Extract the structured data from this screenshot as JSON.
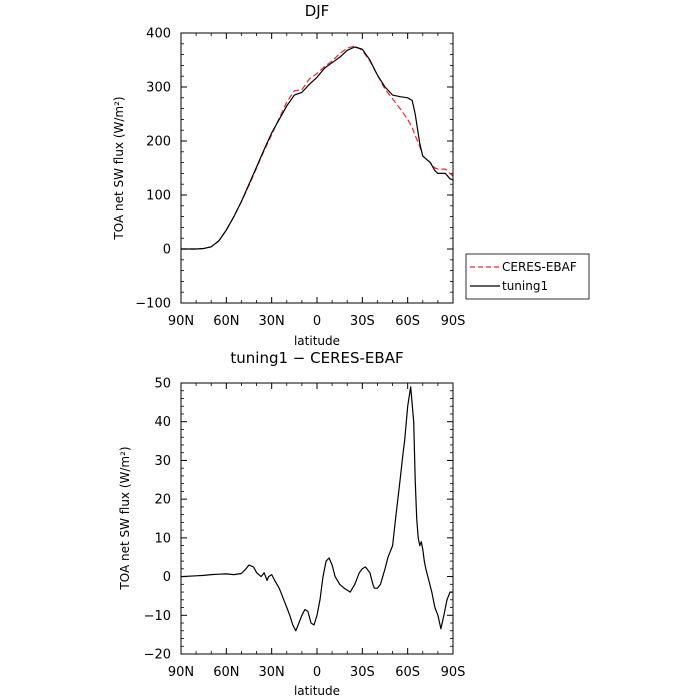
{
  "chart_data": [
    {
      "type": "line",
      "title": "DJF",
      "xlabel": "latitude",
      "ylabel": "TOA net SW flux (W/m²)",
      "xlim": [
        90,
        -90
      ],
      "ylim": [
        -100,
        400
      ],
      "xticks": [
        {
          "value": 90,
          "label": "90N"
        },
        {
          "value": 60,
          "label": "60N"
        },
        {
          "value": 30,
          "label": "30N"
        },
        {
          "value": 0,
          "label": "0"
        },
        {
          "value": -30,
          "label": "30S"
        },
        {
          "value": -60,
          "label": "60S"
        },
        {
          "value": -90,
          "label": "90S"
        }
      ],
      "yticks": [
        -100,
        0,
        100,
        200,
        300,
        400
      ],
      "grid": false,
      "legend": "right",
      "series": [
        {
          "name": "CERES-EBAF",
          "color": "#e8282c",
          "dash": "dashed",
          "x": [
            90,
            80,
            75,
            70,
            65,
            60,
            55,
            50,
            45,
            40,
            35,
            30,
            25,
            20,
            15,
            10,
            5,
            0,
            -5,
            -10,
            -15,
            -20,
            -25,
            -30,
            -35,
            -40,
            -45,
            -50,
            -55,
            -60,
            -63,
            -65,
            -68,
            -70,
            -75,
            -78,
            -80,
            -85,
            -88,
            -90
          ],
          "y": [
            0,
            0,
            1,
            4,
            15,
            35,
            60,
            88,
            118,
            150,
            182,
            212,
            242,
            272,
            293,
            295,
            315,
            325,
            338,
            348,
            362,
            372,
            376,
            368,
            348,
            322,
            296,
            278,
            260,
            240,
            225,
            210,
            190,
            172,
            160,
            150,
            148,
            148,
            140,
            135
          ]
        },
        {
          "name": "tuning1",
          "color": "#000000",
          "dash": "solid",
          "x": [
            90,
            80,
            75,
            70,
            65,
            60,
            55,
            50,
            45,
            40,
            35,
            30,
            25,
            20,
            15,
            10,
            5,
            0,
            -5,
            -10,
            -15,
            -20,
            -25,
            -30,
            -35,
            -40,
            -45,
            -50,
            -55,
            -60,
            -63,
            -65,
            -68,
            -70,
            -75,
            -78,
            -80,
            -85,
            -88,
            -90
          ],
          "y": [
            0,
            0,
            1,
            4,
            15,
            35,
            60,
            88,
            120,
            152,
            184,
            215,
            240,
            265,
            285,
            290,
            305,
            318,
            335,
            345,
            355,
            368,
            374,
            370,
            350,
            322,
            300,
            285,
            282,
            280,
            275,
            250,
            195,
            172,
            160,
            145,
            140,
            140,
            130,
            128
          ]
        }
      ]
    },
    {
      "type": "line",
      "title": "tuning1 − CERES-EBAF",
      "xlabel": "latitude",
      "ylabel": "TOA net SW flux (W/m²)",
      "xlim": [
        90,
        -90
      ],
      "ylim": [
        -20,
        50
      ],
      "xticks": [
        {
          "value": 90,
          "label": "90N"
        },
        {
          "value": 60,
          "label": "60N"
        },
        {
          "value": 30,
          "label": "30N"
        },
        {
          "value": 0,
          "label": "0"
        },
        {
          "value": -30,
          "label": "30S"
        },
        {
          "value": -60,
          "label": "60S"
        },
        {
          "value": -90,
          "label": "90S"
        }
      ],
      "yticks": [
        -20,
        -10,
        0,
        10,
        20,
        30,
        40,
        50
      ],
      "grid": false,
      "series": [
        {
          "color": "#000000",
          "dash": "solid",
          "x": [
            90,
            80,
            75,
            70,
            65,
            60,
            55,
            50,
            47,
            45,
            42,
            40,
            37,
            35,
            33,
            32,
            30,
            28,
            25,
            22,
            20,
            18,
            16,
            14,
            12,
            10,
            8,
            6,
            4,
            2,
            0,
            -2,
            -4,
            -6,
            -8,
            -10,
            -12,
            -15,
            -18,
            -20,
            -22,
            -25,
            -28,
            -30,
            -32,
            -35,
            -37,
            -38,
            -40,
            -42,
            -45,
            -47,
            -50,
            -52,
            -55,
            -57,
            -58,
            -60,
            -62,
            -64,
            -65,
            -66,
            -67,
            -68,
            -69,
            -70,
            -71,
            -72,
            -74,
            -76,
            -78,
            -80,
            -82,
            -84,
            -86,
            -88,
            -90
          ],
          "y": [
            0,
            0.2,
            0.3,
            0.5,
            0.6,
            0.7,
            0.5,
            0.8,
            2,
            3,
            2.5,
            1,
            0,
            1,
            -1,
            0,
            0.5,
            -1,
            -3,
            -6,
            -8,
            -10,
            -12.5,
            -14,
            -12,
            -10,
            -8.5,
            -9,
            -12,
            -12.5,
            -10,
            -6,
            0,
            4,
            4.8,
            3,
            0,
            -2,
            -3,
            -3.5,
            -4,
            -2,
            1,
            2,
            2.5,
            1,
            -2,
            -3,
            -3,
            -2,
            2,
            5,
            8,
            15,
            25,
            32,
            35,
            44,
            49,
            40,
            25,
            15,
            10,
            8,
            9,
            7,
            4,
            2,
            -1,
            -4,
            -8,
            -10,
            -13.5,
            -10,
            -6,
            -4,
            -4
          ]
        }
      ]
    }
  ]
}
